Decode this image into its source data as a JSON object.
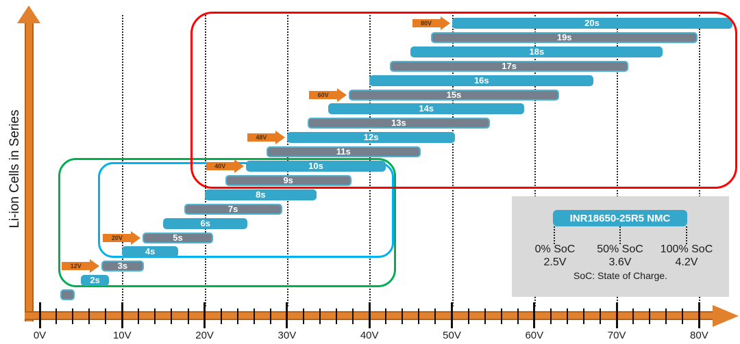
{
  "chart_data": {
    "type": "bar",
    "title": "",
    "xlabel": "",
    "ylabel": "Li-ion Cells in Series",
    "x_axis": {
      "unit": "V",
      "tick_values": [
        0,
        10,
        20,
        30,
        40,
        50,
        60,
        70,
        80
      ],
      "tick_labels": [
        "0V",
        "10V",
        "20V",
        "30V",
        "40V",
        "50V",
        "60V",
        "70V",
        "80V"
      ],
      "minor_tick_step_v": 2,
      "range_v": [
        0,
        85
      ],
      "gridlines_at_v": [
        10,
        20,
        30,
        40,
        50,
        60,
        70,
        80
      ]
    },
    "cell_voltage": {
      "min_v_per_cell": 2.5,
      "max_v_per_cell": 4.2
    },
    "bars": [
      {
        "label": "",
        "cells": 1,
        "min_v": 2.5,
        "max_v": 4.2,
        "style": "gray",
        "show_label": false
      },
      {
        "label": "2s",
        "cells": 2,
        "min_v": 5.0,
        "max_v": 8.4,
        "style": "teal",
        "show_label": true
      },
      {
        "label": "3s",
        "cells": 3,
        "min_v": 7.5,
        "max_v": 12.6,
        "style": "gray",
        "show_label": true
      },
      {
        "label": "4s",
        "cells": 4,
        "min_v": 10.0,
        "max_v": 16.8,
        "style": "teal",
        "show_label": true
      },
      {
        "label": "5s",
        "cells": 5,
        "min_v": 12.5,
        "max_v": 21.0,
        "style": "gray",
        "show_label": true
      },
      {
        "label": "6s",
        "cells": 6,
        "min_v": 15.0,
        "max_v": 25.2,
        "style": "teal",
        "show_label": true
      },
      {
        "label": "7s",
        "cells": 7,
        "min_v": 17.5,
        "max_v": 29.4,
        "style": "gray",
        "show_label": true
      },
      {
        "label": "8s",
        "cells": 8,
        "min_v": 20.0,
        "max_v": 33.6,
        "style": "teal",
        "show_label": true
      },
      {
        "label": "9s",
        "cells": 9,
        "min_v": 22.5,
        "max_v": 37.8,
        "style": "gray",
        "show_label": true
      },
      {
        "label": "10s",
        "cells": 10,
        "min_v": 25.0,
        "max_v": 42.0,
        "style": "teal",
        "show_label": true
      },
      {
        "label": "11s",
        "cells": 11,
        "min_v": 27.5,
        "max_v": 46.2,
        "style": "gray",
        "show_label": true
      },
      {
        "label": "12s",
        "cells": 12,
        "min_v": 30.0,
        "max_v": 50.4,
        "style": "teal",
        "show_label": true
      },
      {
        "label": "13s",
        "cells": 13,
        "min_v": 32.5,
        "max_v": 54.6,
        "style": "gray",
        "show_label": true
      },
      {
        "label": "14s",
        "cells": 14,
        "min_v": 35.0,
        "max_v": 58.8,
        "style": "teal",
        "show_label": true
      },
      {
        "label": "15s",
        "cells": 15,
        "min_v": 37.5,
        "max_v": 63.0,
        "style": "gray",
        "show_label": true
      },
      {
        "label": "16s",
        "cells": 16,
        "min_v": 40.0,
        "max_v": 67.2,
        "style": "teal",
        "show_label": true
      },
      {
        "label": "17s",
        "cells": 17,
        "min_v": 42.5,
        "max_v": 71.4,
        "style": "gray",
        "show_label": true
      },
      {
        "label": "18s",
        "cells": 18,
        "min_v": 45.0,
        "max_v": 75.6,
        "style": "teal",
        "show_label": true
      },
      {
        "label": "19s",
        "cells": 19,
        "min_v": 47.5,
        "max_v": 79.8,
        "style": "gray",
        "show_label": true
      },
      {
        "label": "20s",
        "cells": 20,
        "min_v": 50.0,
        "max_v": 84.0,
        "style": "teal",
        "show_label": true
      }
    ],
    "callouts": [
      {
        "label": "12V",
        "target_cells": 3
      },
      {
        "label": "20V",
        "target_cells": 5
      },
      {
        "label": "40V",
        "target_cells": 10
      },
      {
        "label": "48V",
        "target_cells": 12
      },
      {
        "label": "60V",
        "target_cells": 15
      },
      {
        "label": "80V",
        "target_cells": 20
      }
    ],
    "group_boxes": [
      {
        "name": "red-group",
        "rows": "9s-20s",
        "color": "#FF0000"
      },
      {
        "name": "green-group",
        "rows": "2s-10s",
        "color": "#00B050"
      },
      {
        "name": "cyan-group",
        "rows": "4s-10s",
        "color": "#00B0F0"
      }
    ],
    "legend_position": "bottom-right",
    "grid": "vertical-dotted"
  },
  "legend": {
    "title": "INR18650-25R5 NMC",
    "entries": [
      {
        "soc": "0% SoC",
        "voltage": "2.5V"
      },
      {
        "soc": "50% SoC",
        "voltage": "3.6V"
      },
      {
        "soc": "100% SoC",
        "voltage": "4.2V"
      }
    ],
    "footnote": "SoC: State of Charge."
  },
  "colors": {
    "bar_teal": "#35A7CB",
    "bar_gray": "#75808C",
    "bar_gray_border": "#4FB3D2",
    "axis_orange": "#E2812D",
    "axis_orange_border": "#B4621B",
    "callout_orange": "#E87C22",
    "red_box": "#FF0000",
    "green_box": "#00B050",
    "cyan_box": "#00B0F0",
    "legend_bg": "#D9D9D9"
  }
}
